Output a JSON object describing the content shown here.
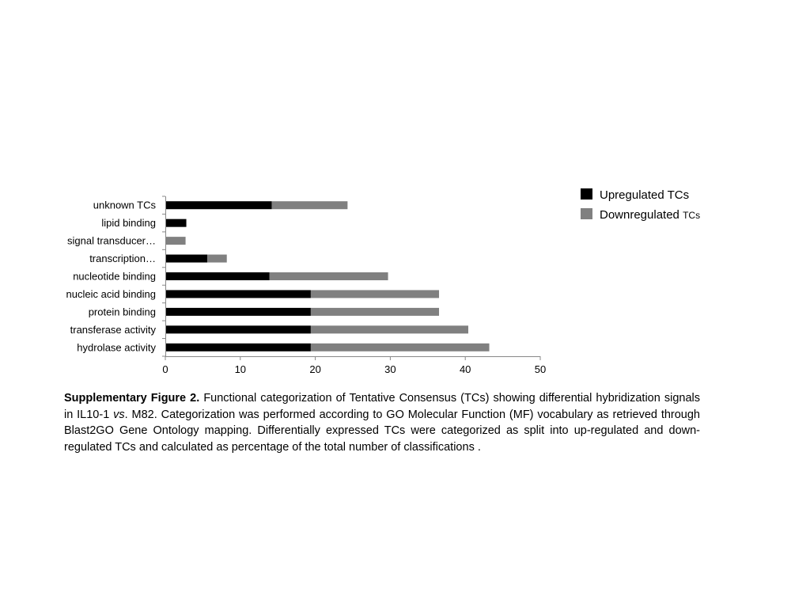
{
  "chart_data": {
    "type": "bar",
    "orientation": "horizontal",
    "stacked": true,
    "categories": [
      "unknown TCs",
      "lipid binding",
      "signal transducer…",
      "transcription…",
      "nucleotide binding",
      "nucleic acid binding",
      "protein binding",
      "transferase activity",
      "hydrolase activity"
    ],
    "series": [
      {
        "name": "Upregulated TCs",
        "color": "#000000",
        "values": [
          14.2,
          2.8,
          0,
          5.6,
          13.9,
          19.4,
          19.4,
          19.4,
          19.4
        ]
      },
      {
        "name": "Downregulated TCs",
        "color": "#808080",
        "values": [
          10.1,
          0,
          2.7,
          2.6,
          15.8,
          17.1,
          17.1,
          21.0,
          23.8
        ]
      }
    ],
    "xticks": [
      0,
      10,
      20,
      30,
      40,
      50
    ],
    "xlim": [
      0,
      50
    ],
    "grid": false,
    "legend_position": "top-right",
    "legend": {
      "up_label": "Upregulated TCs",
      "down_label_main": "Downregulated ",
      "down_label_suffix": "TCs"
    }
  },
  "caption": {
    "bold": "Supplementary Figure 2.",
    "text1": " Functional categorization of Tentative Consensus (TCs) showing differential hybridization signals in IL10-1 ",
    "italic": "vs",
    "text2": ". M82. Categorization was performed according to GO Molecular Function (MF) vocabulary as retrieved through Blast2GO Gene Ontology mapping. Differentially expressed TCs were categorized as split into up-regulated and down-regulated TCs and  calculated as percentage of the total number of classifications ."
  }
}
